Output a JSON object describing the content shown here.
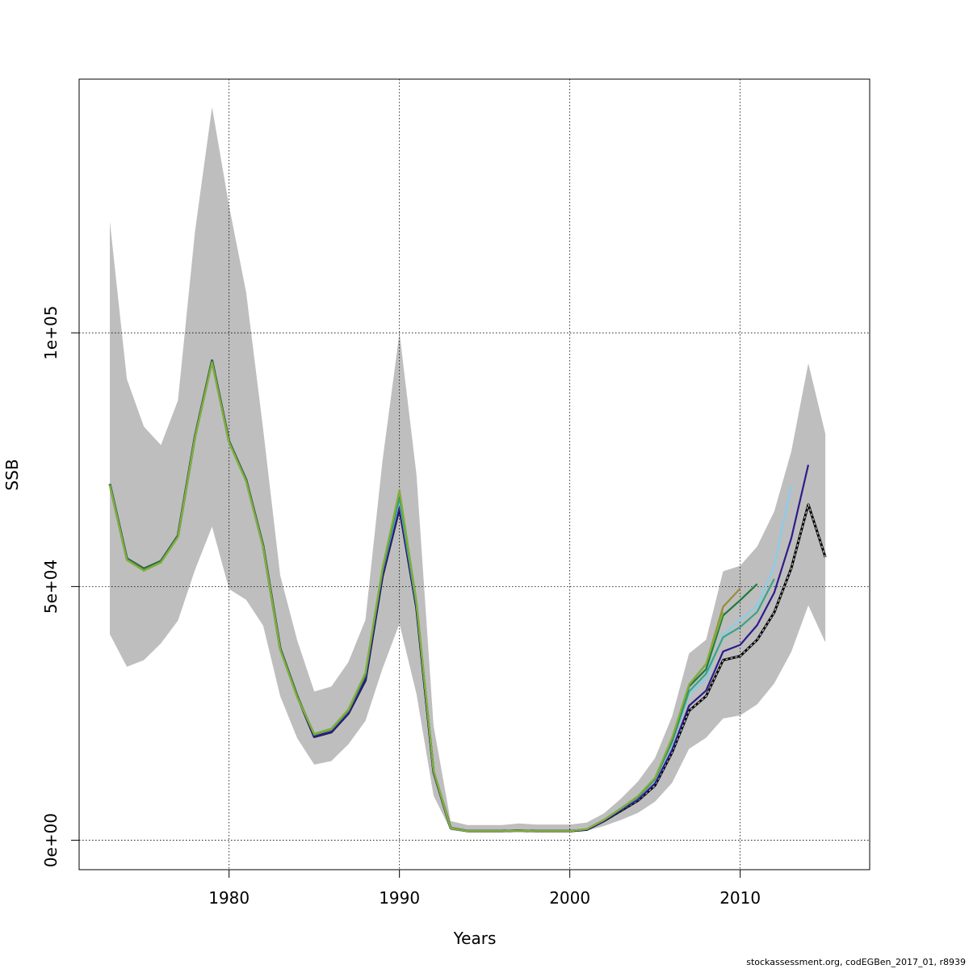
{
  "chart_data": {
    "type": "line",
    "title": "",
    "xlabel": "Years",
    "ylabel": "SSB",
    "xlim": [
      1971.2,
      2017.6
    ],
    "ylim": [
      -5800,
      150000
    ],
    "x_ticks": [
      1980,
      1990,
      2000,
      2010
    ],
    "x_tick_labels": [
      "1980",
      "1990",
      "2000",
      "2010"
    ],
    "y_ticks": [
      0,
      50000,
      100000
    ],
    "y_tick_labels": [
      "0e+00",
      "5e+04",
      "1e+05"
    ],
    "grid": true,
    "legend": "none",
    "band": {
      "name": "",
      "color": "#bebebe",
      "x": [
        1973,
        1974,
        1975,
        1976,
        1977,
        1978,
        1979,
        1980,
        1981,
        1982,
        1983,
        1984,
        1985,
        1986,
        1987,
        1988,
        1989,
        1990,
        1991,
        1992,
        1993,
        1994,
        1995,
        1996,
        1997,
        1998,
        1999,
        2000,
        2001,
        2002,
        2003,
        2004,
        2005,
        2006,
        2007,
        2008,
        2009,
        2010,
        2011,
        2012,
        2013,
        2014,
        2015
      ],
      "lower": [
        40600,
        34200,
        35500,
        38800,
        43300,
        53300,
        61800,
        49500,
        47400,
        42300,
        28400,
        20100,
        14900,
        15600,
        18900,
        23500,
        33800,
        42700,
        28800,
        8800,
        2000,
        1600,
        1600,
        1600,
        1700,
        1600,
        1600,
        1600,
        1900,
        2800,
        4000,
        5400,
        7600,
        11300,
        18000,
        20200,
        24000,
        24600,
        26800,
        30900,
        37100,
        46300,
        39000
      ],
      "upper": [
        122000,
        90900,
        81500,
        77900,
        86700,
        120000,
        144500,
        125000,
        108000,
        81000,
        52200,
        39400,
        29300,
        30300,
        35100,
        43400,
        74700,
        100000,
        72000,
        22600,
        3800,
        3000,
        3000,
        3000,
        3300,
        3100,
        3100,
        3100,
        3500,
        5300,
        8200,
        11600,
        16200,
        24400,
        36800,
        39500,
        53000,
        54100,
        57900,
        64800,
        76600,
        94000,
        80100
      ]
    },
    "series": [
      {
        "name": "",
        "color": "#000000",
        "dashed": true,
        "x": [
          1973,
          1974,
          1975,
          1976,
          1977,
          1978,
          1979,
          1980,
          1981,
          1982,
          1983,
          1984,
          1985,
          1986,
          1987,
          1988,
          1989,
          1990,
          1991,
          1992,
          1993,
          1994,
          1995,
          1996,
          1997,
          1998,
          1999,
          2000,
          2001,
          2002,
          2003,
          2004,
          2005,
          2006,
          2007,
          2008,
          2009,
          2010,
          2011,
          2012,
          2013,
          2014,
          2015
        ],
        "y": [
          70200,
          55500,
          53500,
          55000,
          60000,
          79600,
          94500,
          78600,
          71000,
          58000,
          37800,
          28400,
          20400,
          21300,
          25000,
          31500,
          52000,
          65500,
          45800,
          13500,
          2400,
          1800,
          1800,
          1800,
          1900,
          1800,
          1800,
          1800,
          2100,
          3800,
          5800,
          7800,
          10800,
          17300,
          25500,
          28400,
          35500,
          36300,
          39500,
          44900,
          53600,
          66200,
          55800
        ]
      },
      {
        "name": "",
        "color": "#2e1b8c",
        "dashed": false,
        "x": [
          1973,
          1974,
          1975,
          1976,
          1977,
          1978,
          1979,
          1980,
          1981,
          1982,
          1983,
          1984,
          1985,
          1986,
          1987,
          1988,
          1989,
          1990,
          1991,
          1992,
          1993,
          1994,
          1995,
          1996,
          1997,
          1998,
          1999,
          2000,
          2001,
          2002,
          2003,
          2004,
          2005,
          2006,
          2007,
          2008,
          2009,
          2010,
          2011,
          2012,
          2013,
          2014
        ],
        "y": [
          70200,
          55500,
          53500,
          55000,
          60000,
          79600,
          94500,
          78600,
          71000,
          58000,
          37800,
          28400,
          20400,
          21300,
          25000,
          31500,
          52000,
          65500,
          45800,
          13500,
          2400,
          1800,
          1800,
          1800,
          1900,
          1800,
          1800,
          1800,
          2100,
          3800,
          5900,
          8000,
          11200,
          17800,
          26500,
          29500,
          37200,
          38500,
          42400,
          48800,
          59500,
          74000
        ]
      },
      {
        "name": "",
        "color": "#87ceeb",
        "dashed": false,
        "x": [
          1973,
          1974,
          1975,
          1976,
          1977,
          1978,
          1979,
          1980,
          1981,
          1982,
          1983,
          1984,
          1985,
          1986,
          1987,
          1988,
          1989,
          1990,
          1991,
          1992,
          1993,
          1994,
          1995,
          1996,
          1997,
          1998,
          1999,
          2000,
          2001,
          2002,
          2003,
          2004,
          2005,
          2006,
          2007,
          2008,
          2009,
          2010,
          2011,
          2012,
          2013
        ],
        "y": [
          70200,
          55500,
          53500,
          55000,
          60000,
          79600,
          94500,
          78600,
          71000,
          58000,
          37800,
          28400,
          20800,
          21800,
          25500,
          32500,
          53000,
          67000,
          46300,
          13600,
          2400,
          1800,
          1800,
          1800,
          1900,
          1800,
          1800,
          1800,
          2200,
          4000,
          6200,
          8500,
          11900,
          19000,
          28800,
          31800,
          40500,
          43500,
          46200,
          54000,
          70000
        ]
      },
      {
        "name": "",
        "color": "#3aa387",
        "dashed": false,
        "x": [
          1973,
          1974,
          1975,
          1976,
          1977,
          1978,
          1979,
          1980,
          1981,
          1982,
          1983,
          1984,
          1985,
          1986,
          1987,
          1988,
          1989,
          1990,
          1991,
          1992,
          1993,
          1994,
          1995,
          1996,
          1997,
          1998,
          1999,
          2000,
          2001,
          2002,
          2003,
          2004,
          2005,
          2006,
          2007,
          2008,
          2009,
          2010,
          2011,
          2012
        ],
        "y": [
          70200,
          55500,
          53500,
          55000,
          60000,
          79600,
          94500,
          78600,
          71000,
          58000,
          37800,
          28400,
          20800,
          21800,
          25500,
          32500,
          53000,
          67500,
          46500,
          13600,
          2400,
          1800,
          1800,
          1800,
          1900,
          1800,
          1800,
          1800,
          2200,
          4000,
          6200,
          8500,
          12000,
          19300,
          29300,
          32800,
          40000,
          42000,
          45000,
          51500
        ]
      },
      {
        "name": "",
        "color": "#1e7a3c",
        "dashed": false,
        "x": [
          1973,
          1974,
          1975,
          1976,
          1977,
          1978,
          1979,
          1980,
          1981,
          1982,
          1983,
          1984,
          1985,
          1986,
          1987,
          1988,
          1989,
          1990,
          1991,
          1992,
          1993,
          1994,
          1995,
          1996,
          1997,
          1998,
          1999,
          2000,
          2001,
          2002,
          2003,
          2004,
          2005,
          2006,
          2007,
          2008,
          2009,
          2010,
          2011
        ],
        "y": [
          70200,
          55500,
          53500,
          55000,
          60000,
          79600,
          94500,
          78600,
          71000,
          58000,
          37800,
          28400,
          20900,
          21900,
          25600,
          32700,
          53200,
          68500,
          46800,
          13700,
          2400,
          1800,
          1800,
          1800,
          1900,
          1800,
          1800,
          1800,
          2200,
          4000,
          6300,
          8600,
          12200,
          19800,
          30300,
          33700,
          44300,
          47300,
          50500
        ]
      },
      {
        "name": "",
        "color": "#9b8b3a",
        "dashed": false,
        "x": [
          1973,
          1974,
          1975,
          1976,
          1977,
          1978,
          1979,
          1980,
          1981,
          1982,
          1983,
          1984,
          1985,
          1986,
          1987,
          1988,
          1989,
          1990,
          1991,
          1992,
          1993,
          1994,
          1995,
          1996,
          1997,
          1998,
          1999,
          2000,
          2001,
          2002,
          2003,
          2004,
          2005,
          2006,
          2007,
          2008,
          2009,
          2010
        ],
        "y": [
          70000,
          55300,
          53200,
          54800,
          59800,
          79400,
          94200,
          78400,
          70800,
          57800,
          37600,
          28200,
          20900,
          21900,
          25700,
          32900,
          53500,
          69000,
          47000,
          13800,
          2400,
          1800,
          1800,
          1800,
          1900,
          1800,
          1800,
          1800,
          2200,
          4000,
          6300,
          8700,
          12300,
          20100,
          30600,
          34700,
          46000,
          49600
        ]
      },
      {
        "name": "",
        "color": "#7fb03f",
        "dashed": false,
        "x": [
          1973,
          1974,
          1975,
          1976,
          1977,
          1978,
          1979,
          1980,
          1981,
          1982,
          1983,
          1984,
          1985,
          1986,
          1987,
          1988,
          1989,
          1990,
          1991,
          1992,
          1993,
          1994,
          1995,
          1996,
          1997,
          1998,
          1999,
          2000,
          2001,
          2002,
          2003,
          2004,
          2005,
          2006,
          2007,
          2008,
          2009
        ],
        "y": [
          70000,
          55200,
          53100,
          54700,
          59700,
          79300,
          94100,
          78300,
          70700,
          57700,
          37500,
          28100,
          21000,
          22000,
          25800,
          33000,
          53600,
          68800,
          46900,
          13800,
          2400,
          1800,
          1800,
          1800,
          1900,
          1800,
          1800,
          1800,
          2200,
          4000,
          6300,
          8700,
          12300,
          20200,
          30700,
          34800,
          45000
        ]
      }
    ]
  },
  "footer": "stockassessment.org, codEGBen_2017_01, r8939"
}
